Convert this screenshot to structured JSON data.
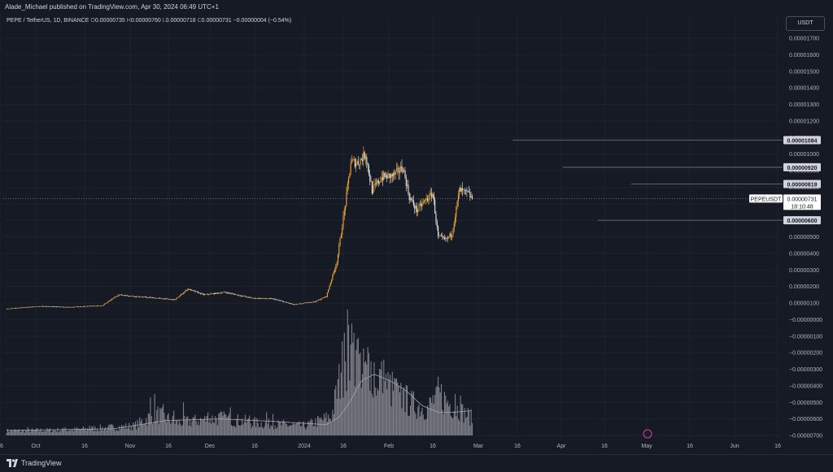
{
  "header": {
    "published_by": "Alade_Michael published on TradingView.com, Apr 30, 2024 06:49 UTC+1"
  },
  "legend": {
    "symbol": "PEPE / TetherUS, 1D, BINANCE",
    "o_label": "O",
    "o_value": "0.00000735",
    "h_label": "H",
    "h_value": "0.00000760",
    "l_label": "L",
    "l_value": "0.00000718",
    "c_label": "C",
    "c_value": "0.00000731",
    "change": "−0.00000004 (−0.54%)"
  },
  "currency": "USDT",
  "footer": {
    "brand": "TradingView",
    "logo_icon": "tradingview-logo-icon"
  },
  "colors": {
    "background": "#161a25",
    "up": "#f0a93a",
    "down": "#e8e8e8",
    "volume": "#8f929a",
    "ma": "#a3a6ad",
    "grid": "#1f2330",
    "level": "#787b86"
  },
  "chart_data": {
    "type": "candlestick",
    "symbol": "PEPEUSDT",
    "timeframe": "1D",
    "x_ticks": [
      "16",
      "Oct",
      "16",
      "Nov",
      "16",
      "Dec",
      "16",
      "2024",
      "16",
      "Feb",
      "16",
      "Mar",
      "16",
      "Apr",
      "16",
      "May",
      "16",
      "Jun",
      "16"
    ],
    "y_ticks": [
      "0.00001700",
      "0.00001600",
      "0.00001500",
      "0.00001400",
      "0.00001300",
      "0.00001200",
      "0.00001100",
      "0.00001000",
      "0.00000900",
      "0.00000800",
      "0.00000700",
      "0.00000600",
      "0.00000500",
      "0.00000400",
      "0.00000300",
      "0.00000200",
      "0.00000100",
      "−0.00000000",
      "−0.00000100",
      "−0.00000200",
      "−0.00000300",
      "−0.00000400",
      "−0.00000500",
      "−0.00000600",
      "−0.00000700"
    ],
    "ylim": [
      -7e-06,
      1.75e-05
    ],
    "levels": [
      "0.00001084",
      "0.00000920",
      "0.00000819",
      "0.00000600"
    ],
    "current_price": {
      "symbol_tag": "PEPEUSDT",
      "price": "0.00000731",
      "countdown": "18:10:48"
    },
    "price_anchors": [
      [
        0,
        6.5e-07
      ],
      [
        30,
        8e-07
      ],
      [
        60,
        7.5e-07
      ],
      [
        90,
        8.5e-07
      ],
      [
        105,
        1.5e-06
      ],
      [
        120,
        1.4e-06
      ],
      [
        140,
        1.3e-06
      ],
      [
        158,
        1.2e-06
      ],
      [
        170,
        1.85e-06
      ],
      [
        185,
        1.5e-06
      ],
      [
        205,
        1.65e-06
      ],
      [
        230,
        1.3e-06
      ],
      [
        250,
        1.25e-06
      ],
      [
        270,
        9e-07
      ],
      [
        290,
        1.1e-06
      ],
      [
        300,
        1.4e-06
      ],
      [
        310,
        3.5e-06
      ],
      [
        318,
        7e-06
      ],
      [
        323,
        9.5e-06
      ],
      [
        330,
        9.5e-06
      ],
      [
        337,
        1e-05
      ],
      [
        343,
        7.8e-06
      ],
      [
        352,
        8.6e-06
      ],
      [
        363,
        8.7e-06
      ],
      [
        372,
        9.2e-06
      ],
      [
        378,
        7.4e-06
      ],
      [
        385,
        6.6e-06
      ],
      [
        393,
        7.2e-06
      ],
      [
        400,
        7.6e-06
      ],
      [
        405,
        5e-06
      ],
      [
        412,
        4.8e-06
      ],
      [
        418,
        5.2e-06
      ],
      [
        425,
        7.8e-06
      ],
      [
        433,
        7.6e-06
      ],
      [
        437,
        7.31e-06
      ]
    ],
    "volume_anchors": [
      [
        0,
        3e-07
      ],
      [
        60,
        3.5e-07
      ],
      [
        120,
        6e-07
      ],
      [
        140,
        1.4e-06
      ],
      [
        160,
        8e-07
      ],
      [
        200,
        1.1e-06
      ],
      [
        240,
        7.5e-07
      ],
      [
        280,
        6e-07
      ],
      [
        305,
        1.2e-06
      ],
      [
        318,
        5.2e-06
      ],
      [
        330,
        4.8e-06
      ],
      [
        345,
        4.2e-06
      ],
      [
        360,
        3e-06
      ],
      [
        380,
        2e-06
      ],
      [
        395,
        1.7e-06
      ],
      [
        405,
        2.6e-06
      ],
      [
        420,
        1.8e-06
      ],
      [
        437,
        1.1e-06
      ]
    ],
    "volume_spikes": [
      [
        20,
        5e-07
      ],
      [
        55,
        5e-07
      ],
      [
        78,
        6e-07
      ],
      [
        95,
        5e-07
      ],
      [
        135,
        2.3e-06
      ],
      [
        139,
        2.5e-06
      ],
      [
        147,
        1.9e-06
      ],
      [
        157,
        1.5e-06
      ],
      [
        166,
        2e-06
      ],
      [
        175,
        1.1e-06
      ],
      [
        189,
        1.4e-06
      ],
      [
        205,
        1.3e-06
      ],
      [
        210,
        1.7e-06
      ],
      [
        228,
        1.2e-06
      ],
      [
        244,
        1.4e-06
      ],
      [
        250,
        1.3e-06
      ],
      [
        260,
        9.5e-07
      ],
      [
        285,
        9e-07
      ],
      [
        314,
        3.8e-06
      ],
      [
        317,
        6.2e-06
      ],
      [
        320,
        7.6e-06
      ],
      [
        323,
        5.5e-06
      ],
      [
        326,
        6.2e-06
      ],
      [
        329,
        5.8e-06
      ],
      [
        332,
        5e-06
      ],
      [
        336,
        4.4e-06
      ],
      [
        338,
        4.3e-06
      ],
      [
        341,
        2.7e-06
      ],
      [
        347,
        2.4e-06
      ],
      [
        355,
        3.3e-06
      ],
      [
        365,
        3.4e-06
      ],
      [
        369,
        2.6e-06
      ],
      [
        373,
        2.9e-06
      ],
      [
        379,
        1.8e-06
      ],
      [
        403,
        2.9e-06
      ],
      [
        408,
        3.1e-06
      ],
      [
        421,
        2.5e-06
      ],
      [
        426,
        2.4e-06
      ]
    ],
    "ma_anchors": [
      [
        0,
        3e-07
      ],
      [
        100,
        4e-07
      ],
      [
        150,
        9e-07
      ],
      [
        200,
        1e-06
      ],
      [
        250,
        8.5e-07
      ],
      [
        300,
        6.5e-07
      ],
      [
        312,
        1.1e-06
      ],
      [
        322,
        2e-06
      ],
      [
        333,
        3.3e-06
      ],
      [
        345,
        3.7e-06
      ],
      [
        360,
        3.3e-06
      ],
      [
        375,
        2.7e-06
      ],
      [
        390,
        1.8e-06
      ],
      [
        405,
        1.4e-06
      ],
      [
        420,
        1.4e-06
      ],
      [
        437,
        1.5e-06
      ]
    ]
  }
}
